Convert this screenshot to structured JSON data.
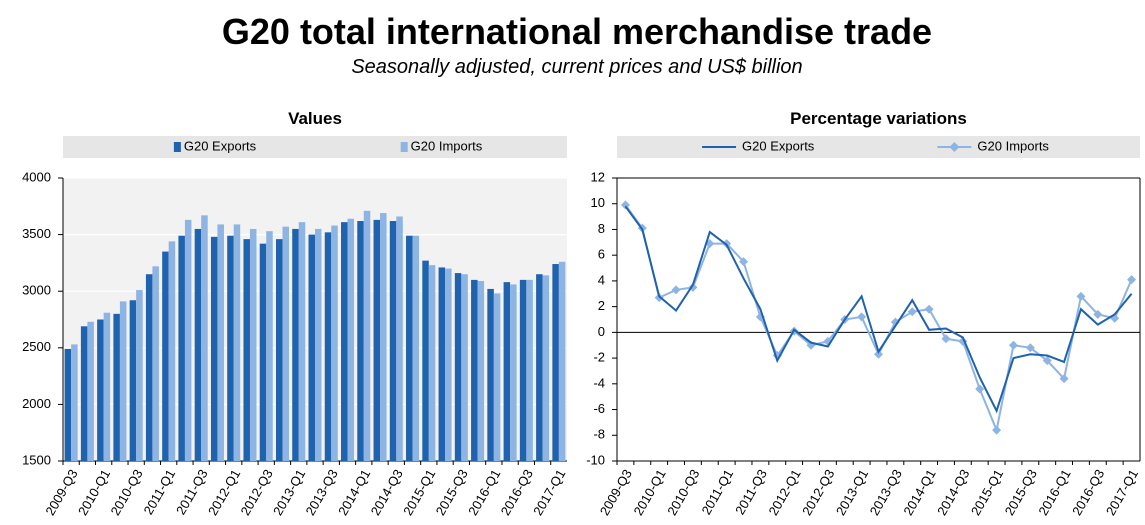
{
  "title": "G20 total international merchandise trade",
  "subtitle": "Seasonally adjusted, current prices and US$ billion",
  "chart_data": [
    {
      "type": "bar",
      "title": "Values",
      "legend": "top",
      "grid": true,
      "categories": [
        "2009-Q3",
        null,
        "2010-Q1",
        null,
        "2010-Q3",
        null,
        "2011-Q1",
        null,
        "2011-Q3",
        null,
        "2012-Q1",
        null,
        "2012-Q3",
        null,
        "2013-Q1",
        null,
        "2013-Q3",
        null,
        "2014-Q1",
        null,
        "2014-Q3",
        null,
        "2015-Q1",
        null,
        "2015-Q3",
        null,
        "2016-Q1",
        null,
        "2016-Q3",
        null,
        "2017-Q1"
      ],
      "ylim": [
        1500,
        4000
      ],
      "yticks": [
        1500,
        2000,
        2500,
        3000,
        3500,
        4000
      ],
      "series": [
        {
          "name": "G20 Exports",
          "color": "#1f62ad",
          "values": [
            2490,
            2690,
            2750,
            2800,
            2920,
            3150,
            3350,
            3490,
            3550,
            3480,
            3490,
            3460,
            3420,
            3460,
            3550,
            3500,
            3520,
            3610,
            3620,
            3630,
            3620,
            3490,
            3270,
            3210,
            3160,
            3100,
            3020,
            3080,
            3100,
            3150,
            3240
          ]
        },
        {
          "name": "G20 Imports",
          "color": "#8db4e2",
          "values": [
            2530,
            2730,
            2810,
            2910,
            3010,
            3220,
            3440,
            3630,
            3670,
            3590,
            3590,
            3550,
            3530,
            3570,
            3610,
            3550,
            3580,
            3640,
            3710,
            3690,
            3660,
            3490,
            3230,
            3200,
            3150,
            3090,
            2980,
            3060,
            3100,
            3140,
            3260
          ]
        }
      ]
    },
    {
      "type": "line",
      "title": "Percentage  variations",
      "legend": "top",
      "grid": false,
      "categories": [
        "2009-Q3",
        null,
        "2010-Q1",
        null,
        "2010-Q3",
        null,
        "2011-Q1",
        null,
        "2011-Q3",
        null,
        "2012-Q1",
        null,
        "2012-Q3",
        null,
        "2013-Q1",
        null,
        "2013-Q3",
        null,
        "2014-Q1",
        null,
        "2014-Q3",
        null,
        "2015-Q1",
        null,
        "2015-Q3",
        null,
        "2016-Q1",
        null,
        "2016-Q3",
        null,
        "2017-Q1"
      ],
      "ylim": [
        -10,
        12
      ],
      "yticks": [
        -10,
        -8,
        -6,
        -4,
        -2,
        0,
        2,
        4,
        6,
        8,
        10,
        12
      ],
      "series": [
        {
          "name": "G20 Exports",
          "color": "#1f62ad",
          "values": [
            9.8,
            8.0,
            2.8,
            1.7,
            3.7,
            7.8,
            6.8,
            4.2,
            1.8,
            -2.2,
            0.2,
            -0.8,
            -1.1,
            1.0,
            2.8,
            -1.5,
            0.5,
            2.5,
            0.2,
            0.3,
            -0.4,
            -3.5,
            -6.1,
            -2.0,
            -1.7,
            -1.8,
            -2.3,
            1.8,
            0.6,
            1.4,
            3.0
          ]
        },
        {
          "name": "G20 Imports",
          "color": "#8db4e2",
          "marker": "diamond",
          "values": [
            9.9,
            8.1,
            2.7,
            3.3,
            3.5,
            6.9,
            6.9,
            5.5,
            1.2,
            -1.8,
            0.1,
            -1.0,
            -0.7,
            1.0,
            1.2,
            -1.7,
            0.8,
            1.6,
            1.8,
            -0.5,
            -0.7,
            -4.4,
            -7.6,
            -1.0,
            -1.2,
            -2.2,
            -3.6,
            2.8,
            1.4,
            1.1,
            4.1
          ]
        }
      ]
    }
  ]
}
